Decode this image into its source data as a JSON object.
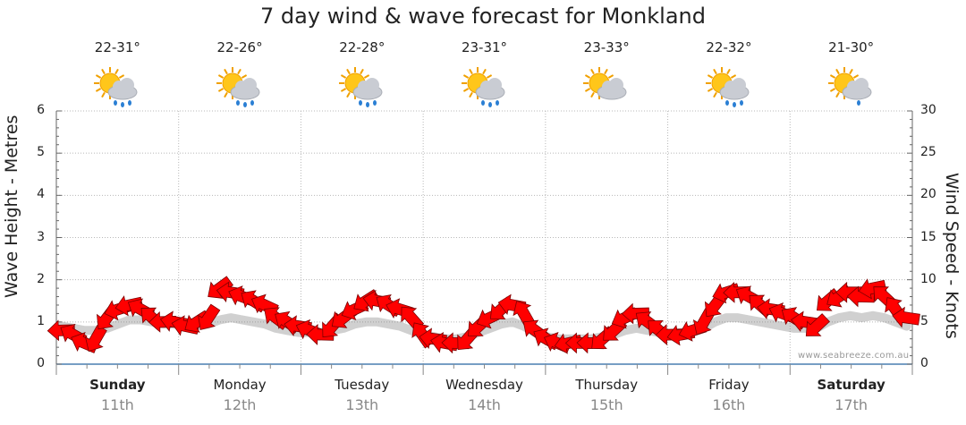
{
  "chart_data": {
    "type": "line",
    "title": "7 day wind & wave forecast for Monkland",
    "y_left_label": "Wave Height - Metres",
    "y_right_label": "Wind Speed - Knots",
    "y_left_ticks": [
      "0",
      "1",
      "2",
      "3",
      "4",
      "5",
      "6"
    ],
    "y_right_ticks": [
      "0",
      "5",
      "10",
      "15",
      "20",
      "25",
      "30"
    ],
    "ylim_left": [
      0,
      6
    ],
    "ylim_right": [
      0,
      30
    ],
    "credit": "www.seabreeze.com.au",
    "days": [
      {
        "name": "Sunday",
        "date": "11th",
        "temp": "22-31°",
        "bold": true,
        "icon": "sun-cloud-rain-icon"
      },
      {
        "name": "Monday",
        "date": "12th",
        "temp": "22-26°",
        "bold": false,
        "icon": "sun-cloud-rain-icon"
      },
      {
        "name": "Tuesday",
        "date": "13th",
        "temp": "22-28°",
        "bold": false,
        "icon": "sun-cloud-rain-icon"
      },
      {
        "name": "Wednesday",
        "date": "14th",
        "temp": "23-31°",
        "bold": false,
        "icon": "sun-cloud-rain-icon"
      },
      {
        "name": "Thursday",
        "date": "15th",
        "temp": "23-33°",
        "bold": false,
        "icon": "sun-cloud-icon"
      },
      {
        "name": "Friday",
        "date": "16th",
        "temp": "22-32°",
        "bold": false,
        "icon": "sun-cloud-rain-icon"
      },
      {
        "name": "Saturday",
        "date": "17th",
        "temp": "21-30°",
        "bold": true,
        "icon": "sun-cloud-light-rain-icon"
      }
    ],
    "series": [
      {
        "name": "Wind Speed - Knots",
        "color": "#ff0000",
        "marker": "wind-direction-arrow",
        "values": [
          4,
          3.5,
          2.5,
          3,
          5.5,
          6.5,
          7,
          6.5,
          5.5,
          5,
          5,
          4.5,
          5,
          5.5,
          9,
          8.5,
          8,
          7.5,
          7,
          5.5,
          5,
          4.5,
          4,
          3.5,
          4.5,
          5.5,
          6.5,
          7.5,
          7.5,
          7,
          6.5,
          5.5,
          3.5,
          3,
          2.5,
          2.5,
          3,
          4.5,
          5.5,
          6.5,
          7,
          6,
          4,
          3,
          2.5,
          2.5,
          2.5,
          2.5,
          3,
          4,
          5.5,
          6,
          5,
          4,
          3.5,
          3.5,
          4,
          5,
          7,
          8.5,
          8.5,
          8,
          7,
          6.5,
          6,
          5.5,
          5,
          4.5,
          7.5,
          8,
          8.5,
          8,
          9,
          8,
          6.5,
          5.5
        ]
      },
      {
        "name": "Wave Height - Metres",
        "color": "#555555",
        "values": [
          0.9,
          0.85,
          0.8,
          0.8,
          0.85,
          0.95,
          1.05,
          1.05,
          1.0,
          0.95,
          0.95,
          0.9,
          0.9,
          0.95,
          1.05,
          1.1,
          1.05,
          1.0,
          0.95,
          0.85,
          0.8,
          0.75,
          0.75,
          0.75,
          0.8,
          0.85,
          0.95,
          1.0,
          1.0,
          0.95,
          0.9,
          0.8,
          0.7,
          0.65,
          0.6,
          0.6,
          0.65,
          0.75,
          0.85,
          0.95,
          1.0,
          0.9,
          0.75,
          0.65,
          0.6,
          0.6,
          0.6,
          0.6,
          0.65,
          0.7,
          0.8,
          0.85,
          0.8,
          0.75,
          0.7,
          0.7,
          0.75,
          0.85,
          1.0,
          1.1,
          1.1,
          1.05,
          1.0,
          0.95,
          0.9,
          0.85,
          0.85,
          0.85,
          1.0,
          1.1,
          1.15,
          1.1,
          1.15,
          1.1,
          1.0,
          0.9
        ]
      }
    ]
  }
}
